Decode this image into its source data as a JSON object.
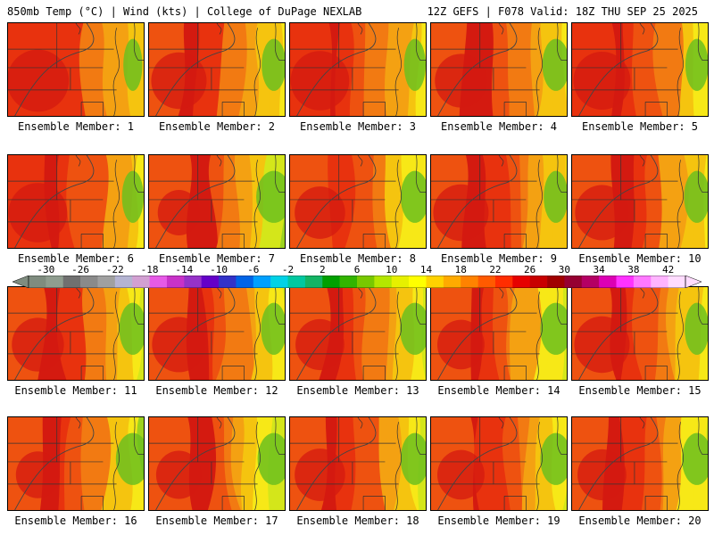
{
  "header": {
    "left": "850mb Temp (°C) | Wind (kts) | College of DuPage NEXLAB",
    "right": "12Z GEFS | F078 Valid: 18Z THU SEP 25 2025"
  },
  "member_label_prefix": "Ensemble Member:",
  "members": [
    {
      "label": "Ensemble Member: 1",
      "number": 1,
      "warm_bias": 0.9
    },
    {
      "label": "Ensemble Member: 2",
      "number": 2,
      "warm_bias": 0.7
    },
    {
      "label": "Ensemble Member: 3",
      "number": 3,
      "warm_bias": 0.8
    },
    {
      "label": "Ensemble Member: 4",
      "number": 4,
      "warm_bias": 0.6
    },
    {
      "label": "Ensemble Member: 5",
      "number": 5,
      "warm_bias": 0.75
    },
    {
      "label": "Ensemble Member: 6",
      "number": 6,
      "warm_bias": 0.8
    },
    {
      "label": "Ensemble Member: 7",
      "number": 7,
      "warm_bias": 0.3
    },
    {
      "label": "Ensemble Member: 8",
      "number": 8,
      "warm_bias": 0.55
    },
    {
      "label": "Ensemble Member: 9",
      "number": 9,
      "warm_bias": 0.7
    },
    {
      "label": "Ensemble Member: 10",
      "number": 10,
      "warm_bias": 0.65
    },
    {
      "label": "Ensemble Member: 11",
      "number": 11,
      "warm_bias": 0.6
    },
    {
      "label": "Ensemble Member: 12",
      "number": 12,
      "warm_bias": 0.65
    },
    {
      "label": "Ensemble Member: 13",
      "number": 13,
      "warm_bias": 0.5
    },
    {
      "label": "Ensemble Member: 14",
      "number": 14,
      "warm_bias": 0.45
    },
    {
      "label": "Ensemble Member: 15",
      "number": 15,
      "warm_bias": 0.7
    },
    {
      "label": "Ensemble Member: 16",
      "number": 16,
      "warm_bias": 0.35
    },
    {
      "label": "Ensemble Member: 17",
      "number": 17,
      "warm_bias": 0.4
    },
    {
      "label": "Ensemble Member: 18",
      "number": 18,
      "warm_bias": 0.55
    },
    {
      "label": "Ensemble Member: 19",
      "number": 19,
      "warm_bias": 0.45
    },
    {
      "label": "Ensemble Member: 20",
      "number": 20,
      "warm_bias": 0.5
    }
  ],
  "colorbar": {
    "units": "°C",
    "min": -32,
    "max": 44,
    "tick_labels": [
      "-30",
      "-26",
      "-22",
      "-18",
      "-14",
      "-10",
      "-6",
      "-2",
      "2",
      "6",
      "10",
      "14",
      "18",
      "22",
      "26",
      "30",
      "34",
      "38",
      "42"
    ],
    "colors": [
      "#7f8c7f",
      "#8f9d8f",
      "#707070",
      "#8a8a8a",
      "#a0a0a0",
      "#b4b4d2",
      "#d2a0d2",
      "#e65ae6",
      "#c832c8",
      "#9632c8",
      "#6400c8",
      "#3232c8",
      "#0064e6",
      "#00a0ff",
      "#00d2e6",
      "#00c8a0",
      "#14b464",
      "#00a000",
      "#32b400",
      "#78c800",
      "#b4e600",
      "#e6f000",
      "#ffff00",
      "#ffd200",
      "#ffaa00",
      "#ff8200",
      "#ff5a00",
      "#ff2d00",
      "#e60000",
      "#c80000",
      "#a00000",
      "#960032",
      "#b40064",
      "#dc00b4",
      "#ff32ff",
      "#ff78ff",
      "#ffb4ff",
      "#ffdcff"
    ]
  }
}
